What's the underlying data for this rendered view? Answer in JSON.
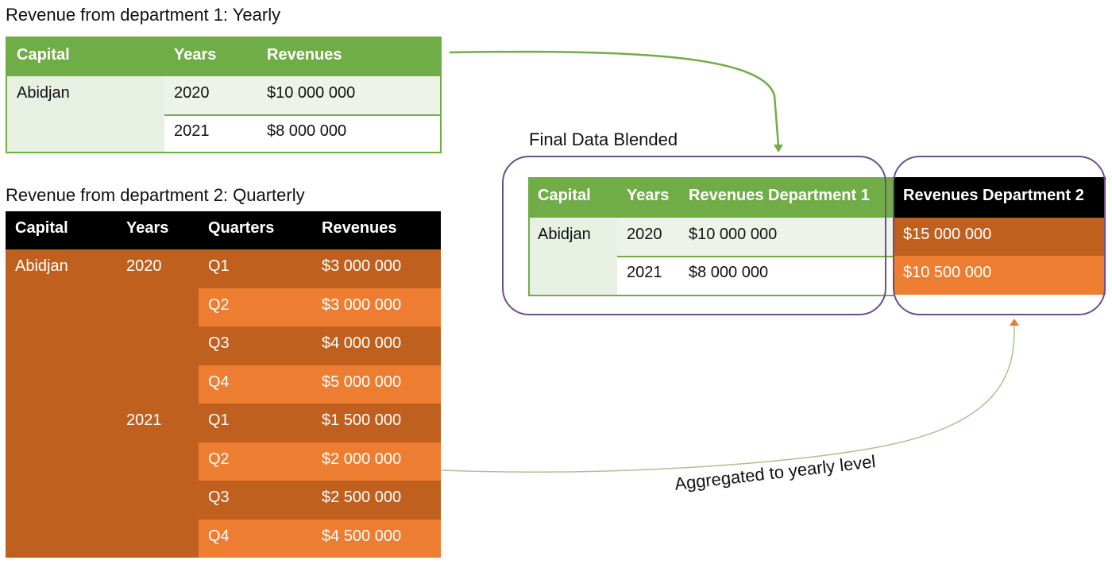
{
  "dept1": {
    "title": "Revenue from department 1: Yearly",
    "headers": [
      "Capital",
      "Years",
      "Revenues"
    ],
    "capital": "Abidjan",
    "rows": [
      {
        "year": "2020",
        "revenue": "$10 000 000"
      },
      {
        "year": "2021",
        "revenue": "$8 000 000"
      }
    ]
  },
  "dept2": {
    "title": "Revenue from department 2: Quarterly",
    "headers": [
      "Capital",
      "Years",
      "Quarters",
      "Revenues"
    ],
    "capital": "Abidjan",
    "year_2020": "2020",
    "year_2021": "2021",
    "rows": [
      {
        "quarter": "Q1",
        "revenue": "$3 000 000"
      },
      {
        "quarter": "Q2",
        "revenue": "$3 000 000"
      },
      {
        "quarter": "Q3",
        "revenue": "$4 000 000"
      },
      {
        "quarter": "Q4",
        "revenue": "$5 000 000"
      },
      {
        "quarter": "Q1",
        "revenue": "$1 500 000"
      },
      {
        "quarter": "Q2",
        "revenue": "$2 000 000"
      },
      {
        "quarter": "Q3",
        "revenue": "$2 500 000"
      },
      {
        "quarter": "Q4",
        "revenue": "$4 500 000"
      }
    ]
  },
  "final": {
    "title": "Final Data Blended",
    "headers": [
      "Capital",
      "Years",
      "Revenues Department 1",
      "Revenues Department 2"
    ],
    "capital": "Abidjan",
    "rows": [
      {
        "year": "2020",
        "rev1": "$10 000 000",
        "rev2": "$15 000 000"
      },
      {
        "year": "2021",
        "rev1": "$8 000 000",
        "rev2": "$10 500 000"
      }
    ]
  },
  "annotation": "Aggregated to yearly level",
  "colors": {
    "green": "#70ad47",
    "orange_dark": "#c0601f",
    "orange_light": "#ed7d31",
    "black": "#000000",
    "frame": "#6b4f8a"
  }
}
